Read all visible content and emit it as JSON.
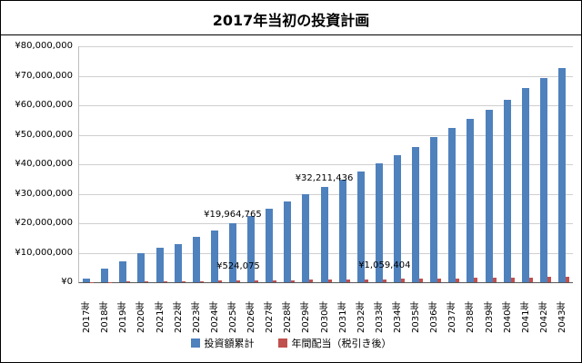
{
  "title": "2017年当初の投資計画",
  "chart_data": {
    "type": "bar",
    "title": "2017年当初の投資計画",
    "categories": [
      "2017年",
      "2018年",
      "2019年",
      "2020年",
      "2021年",
      "2022年",
      "2023年",
      "2024年",
      "2025年",
      "2026年",
      "2027年",
      "2028年",
      "2029年",
      "2030年",
      "2031年",
      "2032年",
      "2033年",
      "2034年",
      "2035年",
      "2036年",
      "2037年",
      "2038年",
      "2039年",
      "2040年",
      "2041年",
      "2042年",
      "2043年"
    ],
    "series": [
      {
        "name": "投資額累計",
        "color": "#4f81bd",
        "values": [
          1200000,
          4600000,
          7200000,
          9700000,
          11700000,
          13000000,
          15500000,
          17500000,
          19964765,
          22450000,
          24950000,
          27450000,
          29950000,
          32211436,
          34900000,
          37500000,
          40200000,
          43000000,
          46000000,
          49300000,
          52300000,
          55500000,
          58600000,
          62000000,
          65800000,
          69200000,
          72600000
        ]
      },
      {
        "name": "年間配当（税引き後）",
        "color": "#c0504d",
        "values": [
          60000,
          120000,
          190000,
          250000,
          310000,
          370000,
          430000,
          480000,
          524075,
          590000,
          660000,
          720000,
          790000,
          860000,
          920000,
          990000,
          1059404,
          1130000,
          1200000,
          1280000,
          1350000,
          1430000,
          1510000,
          1590000,
          1670000,
          1750000,
          1830000
        ]
      }
    ],
    "ylim": [
      0,
      80000000
    ],
    "ytick_step": 10000000,
    "ytick_labels": [
      "¥0",
      "¥10,000,000",
      "¥20,000,000",
      "¥30,000,000",
      "¥40,000,000",
      "¥50,000,000",
      "¥60,000,000",
      "¥70,000,000",
      "¥80,000,000"
    ],
    "grid": true,
    "legend_position": "bottom",
    "annotations": [
      {
        "category": "2025年",
        "series": 0,
        "text": "¥19,964,765"
      },
      {
        "category": "2030年",
        "series": 0,
        "text": "¥32,211,436"
      },
      {
        "category": "2025年",
        "series": 1,
        "text": "¥524,075"
      },
      {
        "category": "2033年",
        "series": 1,
        "text": "¥1,059,404"
      }
    ]
  }
}
